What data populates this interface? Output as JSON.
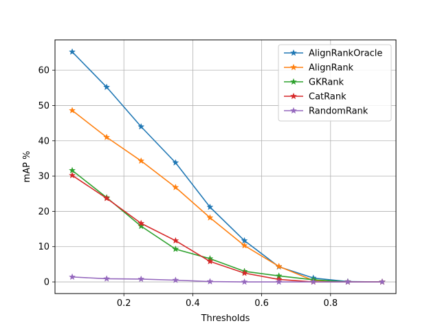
{
  "chart_data": {
    "type": "line",
    "xlabel": "Thresholds",
    "ylabel": "mAP %",
    "xlim": [
      0.0,
      0.99
    ],
    "ylim": [
      -3.3,
      68.6
    ],
    "x_ticks": [
      0.2,
      0.4,
      0.6,
      0.8
    ],
    "y_ticks": [
      0,
      10,
      20,
      30,
      40,
      50,
      60
    ],
    "x_tick_labels": [
      "0.2",
      "0.4",
      "0.6",
      "0.8"
    ],
    "y_tick_labels": [
      "0",
      "10",
      "20",
      "30",
      "40",
      "50",
      "60"
    ],
    "grid": true,
    "legend_position": "top-right",
    "marker": "star",
    "x": [
      0.05,
      0.15,
      0.25,
      0.35,
      0.45,
      0.55,
      0.65,
      0.75,
      0.85,
      0.95
    ],
    "series": [
      {
        "name": "AlignRankOracle",
        "color": "#1f77b4",
        "values": [
          65.2,
          55.2,
          44.0,
          33.8,
          21.2,
          11.7,
          4.3,
          1.1,
          0.1,
          0.0
        ]
      },
      {
        "name": "AlignRank",
        "color": "#ff7f0e",
        "values": [
          48.6,
          41.0,
          34.3,
          26.8,
          18.2,
          10.3,
          4.4,
          0.4,
          0.0,
          0.0
        ]
      },
      {
        "name": "GKRank",
        "color": "#2ca02c",
        "values": [
          31.6,
          23.9,
          15.8,
          9.3,
          6.6,
          3.0,
          1.7,
          0.6,
          0.0,
          0.0
        ]
      },
      {
        "name": "CatRank",
        "color": "#d62728",
        "values": [
          30.2,
          23.7,
          16.6,
          11.7,
          5.8,
          2.5,
          0.7,
          0.0,
          0.0,
          0.0
        ]
      },
      {
        "name": "RandomRank",
        "color": "#9467bd",
        "values": [
          1.4,
          0.9,
          0.8,
          0.5,
          0.1,
          0.0,
          0.0,
          0.0,
          0.0,
          0.0
        ]
      }
    ]
  }
}
